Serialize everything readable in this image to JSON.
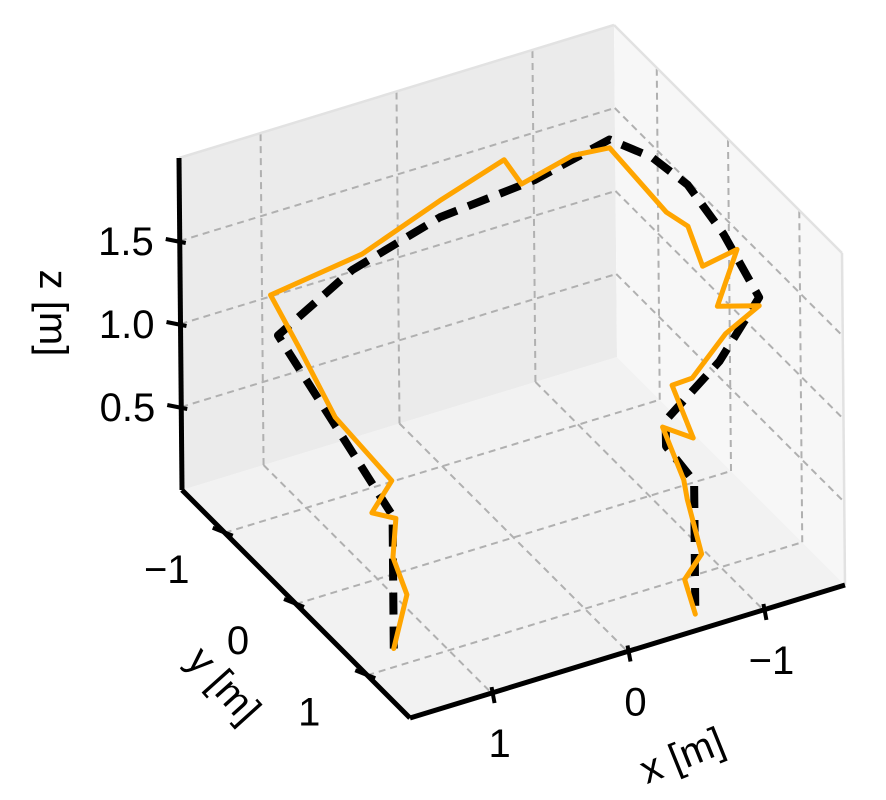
{
  "chart_data": {
    "type": "line",
    "projection": "3d",
    "title": "",
    "xlabel": "x [m]",
    "ylabel": "y [m]",
    "zlabel": "z [m]",
    "xlim": [
      1.6,
      -1.6
    ],
    "ylim": [
      -1.6,
      1.6
    ],
    "zlim": [
      0.0,
      2.0
    ],
    "xticks": [
      {
        "value": 1,
        "label": "1"
      },
      {
        "value": 0,
        "label": "0"
      },
      {
        "value": -1,
        "label": "−1"
      }
    ],
    "yticks": [
      {
        "value": -1,
        "label": "−1"
      },
      {
        "value": 0,
        "label": "0"
      },
      {
        "value": 1,
        "label": "1"
      }
    ],
    "zticks": [
      {
        "value": 0.5,
        "label": "0.5"
      },
      {
        "value": 1.0,
        "label": "1.0"
      },
      {
        "value": 1.5,
        "label": "1.5"
      }
    ],
    "grid": true,
    "legend": "none",
    "series": [
      {
        "style": "dashed",
        "color": "#000000",
        "points": [
          [
            1.3,
            0.8,
            0.0
          ],
          [
            1.3,
            0.8,
            0.6
          ],
          [
            1.3,
            0.8,
            0.8
          ],
          [
            1.3,
            0.0,
            1.0
          ],
          [
            1.3,
            -0.8,
            1.2
          ],
          [
            0.7,
            -0.9,
            1.4
          ],
          [
            0.0,
            -1.0,
            1.5
          ],
          [
            -0.7,
            -1.0,
            1.55
          ],
          [
            -1.3,
            -1.1,
            1.6
          ],
          [
            -1.3,
            -0.5,
            1.75
          ],
          [
            -1.3,
            0.0,
            1.8
          ],
          [
            -1.3,
            0.5,
            1.72
          ],
          [
            -1.3,
            1.0,
            1.55
          ],
          [
            -0.9,
            1.2,
            1.35
          ],
          [
            -0.45,
            1.3,
            1.15
          ],
          [
            -0.4,
            1.4,
            1.05
          ],
          [
            -0.5,
            1.6,
            0.9
          ],
          [
            -0.5,
            1.6,
            0.15
          ]
        ]
      },
      {
        "style": "solid",
        "color": "#ffa500",
        "points": [
          [
            1.3,
            0.8,
            0.0
          ],
          [
            1.2,
            0.8,
            0.3
          ],
          [
            1.3,
            0.8,
            0.55
          ],
          [
            1.25,
            0.75,
            0.75
          ],
          [
            1.4,
            0.7,
            0.8
          ],
          [
            1.2,
            0.6,
            0.9
          ],
          [
            1.3,
            0.0,
            1.05
          ],
          [
            1.25,
            -0.6,
            1.2
          ],
          [
            1.3,
            -0.9,
            1.4
          ],
          [
            0.6,
            -0.95,
            1.45
          ],
          [
            0.0,
            -1.0,
            1.6
          ],
          [
            -0.5,
            -1.05,
            1.7
          ],
          [
            -0.6,
            -1.0,
            1.55
          ],
          [
            -1.0,
            -1.05,
            1.6
          ],
          [
            -1.3,
            -1.1,
            1.55
          ],
          [
            -1.35,
            -0.4,
            1.45
          ],
          [
            -1.3,
            0.0,
            1.55
          ],
          [
            -1.25,
            0.3,
            1.45
          ],
          [
            -1.4,
            0.5,
            1.6
          ],
          [
            -1.2,
            0.6,
            1.35
          ],
          [
            -1.3,
            1.0,
            1.5
          ],
          [
            -1.0,
            1.1,
            1.45
          ],
          [
            -0.7,
            1.2,
            1.3
          ],
          [
            -0.5,
            1.3,
            1.35
          ],
          [
            -0.6,
            1.4,
            1.05
          ],
          [
            -0.35,
            1.45,
            1.2
          ],
          [
            -0.45,
            1.55,
            0.9
          ],
          [
            -0.5,
            1.5,
            0.75
          ],
          [
            -0.55,
            1.6,
            0.45
          ],
          [
            -0.45,
            1.55,
            0.3
          ],
          [
            -0.5,
            1.6,
            0.1
          ]
        ]
      }
    ]
  }
}
